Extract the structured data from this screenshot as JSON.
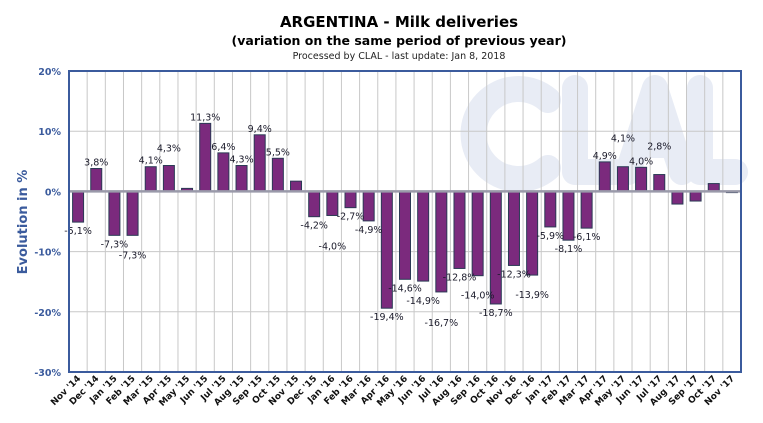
{
  "chart_data": {
    "type": "bar",
    "title": "ARGENTINA - Milk deliveries",
    "subtitle": "(variation on the same period of previous year)",
    "source_note": "Processed by CLAL - last update: Jan 8, 2018",
    "watermark": "CLAL",
    "ylabel": "Evolution in %",
    "xlabel": "",
    "ylim": [
      -30,
      20
    ],
    "yticks": [
      20,
      10,
      0,
      -10,
      -20,
      -30
    ],
    "ytick_labels": [
      "20%",
      "10%",
      "0%",
      "-10%",
      "-20%",
      "-30%"
    ],
    "grid": true,
    "legend": "none",
    "colors": {
      "bar_fill": "#7b2a7d",
      "bar_outline": "#2b3a55",
      "axis": "#3b5b9d",
      "grid": "#c8c8c8",
      "watermark": "#e8ecf5"
    },
    "categories": [
      "Nov '14",
      "Dec '14",
      "Jan '15",
      "Feb '15",
      "Mar '15",
      "Apr '15",
      "May '15",
      "Jun '15",
      "Jul '15",
      "Aug '15",
      "Sep '15",
      "Oct '15",
      "Nov '15",
      "Dec '15",
      "Jan '16",
      "Feb '16",
      "Mar '16",
      "Apr '16",
      "May '16",
      "Jun '16",
      "Jul '16",
      "Aug '16",
      "Sep '16",
      "Oct '16",
      "Nov '16",
      "Dec '16",
      "Jan '17",
      "Feb '17",
      "Mar '17",
      "Apr '17",
      "May '17",
      "Jun '17",
      "Jul '17",
      "Aug '17",
      "Sep '17",
      "Oct '17",
      "Nov '17"
    ],
    "values": [
      -5.1,
      3.8,
      -7.3,
      -7.3,
      4.1,
      4.3,
      0.5,
      11.3,
      6.4,
      4.3,
      9.4,
      5.5,
      1.7,
      -4.2,
      -4.0,
      -2.7,
      -4.9,
      -19.4,
      -14.6,
      -14.9,
      -16.7,
      -12.8,
      -14.0,
      -18.7,
      -12.3,
      -13.9,
      -5.9,
      -8.1,
      -6.1,
      4.9,
      4.1,
      4.0,
      2.8,
      -2.1,
      -1.6,
      1.3,
      -0.2
    ],
    "data_labels": [
      "-5,1%",
      "3,8%",
      "-7,3%",
      "-7,3%",
      "4,1%",
      "4,3%",
      null,
      "11,3%",
      "6,4%",
      "4,3%",
      "9,4%",
      "5,5%",
      null,
      "-4,2%",
      "-4,0%",
      "-2,7%",
      "-4,9%",
      "-19,4%",
      "-14,6%",
      "-14,9%",
      "-16,7%",
      "-12,8%",
      "-14,0%",
      "-18,7%",
      "-12,3%",
      "-13,9%",
      "-5,9%",
      "-8,1%",
      "-6,1%",
      "4,9%",
      "4,1%",
      "4,0%",
      "2,8%",
      null,
      null,
      null,
      null
    ]
  }
}
